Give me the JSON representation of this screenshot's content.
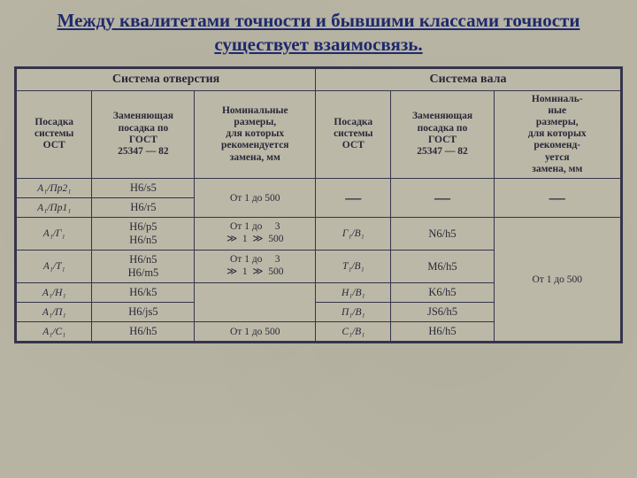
{
  "title": "Между квалитетами точности и бывшими классами точности существует взаимосвязь.",
  "header": {
    "left": "Система отверстия",
    "right": "Система вала"
  },
  "cols": {
    "c1": "Посадка\nсистемы\nОСТ",
    "c2": "Заменяющая\nпосадка по\nГОСТ\n25347 — 82",
    "c3": "Номинальные\nразмеры,\nдля которых\nрекомендуется\nзамена, мм",
    "c4": "Посадка\nсистемы\nОСТ",
    "c5": "Заменяющая\nпосадка по\nГОСТ\n25347 — 82",
    "c6": "Номиналь-\nные\nразмеры,\nдля которых\nрекоменд-\nуется\nзамена, мм"
  },
  "rows": {
    "r1": {
      "a": "А₁/Пр2₁",
      "b": "H6/s5"
    },
    "r2": {
      "a": "А₁/Пр1₁",
      "b": "H6/r5"
    },
    "span12_c": "От 1 до 500",
    "span12_d": "—",
    "span12_e": "—",
    "span12_f": "—",
    "r3": {
      "a": "А₁/Г₁",
      "b": "H6/p5\nH6/n5",
      "c": "От 1 до     3\n≫  1  ≫  500",
      "d": "Г₁/В₁",
      "e": "N6/h5"
    },
    "r4": {
      "a": "А₁/Т₁",
      "b": "H6/n5\nH6/m5",
      "c": "От 1 до     3\n≫  1  ≫  500",
      "d": "Т₁/В₁",
      "e": "M6/h5"
    },
    "r5": {
      "a": "А₁/Н₁",
      "b": "H6/k5",
      "d": "Н₁/В₁",
      "e": "K6/h5"
    },
    "r6": {
      "a": "А₁/П₁",
      "b": "H6/js5",
      "d": "П₁/В₁",
      "e": "JS6/h5"
    },
    "r7": {
      "a": "А₁/С₁",
      "b": "H6/h5",
      "c": "От 1 до 500",
      "d": "С₁/В₁",
      "e": "H6/h5"
    },
    "span3_7_f": "От 1 до 500"
  },
  "colors": {
    "border": "#34344b",
    "bg": "#b8b4a3",
    "title": "#1e2a6e"
  }
}
